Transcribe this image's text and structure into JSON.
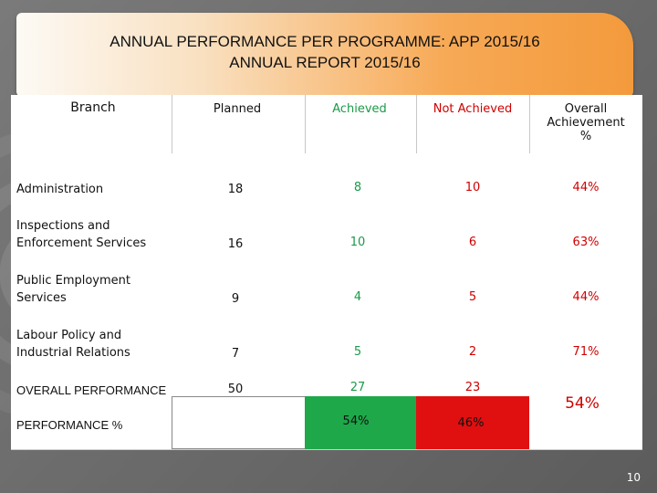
{
  "title": {
    "line1": "ANNUAL PERFORMANCE PER PROGRAMME: APP 2015/16",
    "line2": "ANNUAL REPORT 2015/16"
  },
  "table": {
    "headers": {
      "branch": "Branch",
      "planned": "Planned",
      "achieved": "Achieved",
      "not_achieved": "Not Achieved",
      "overall_line1": "Overall",
      "overall_line2": "Achievement",
      "overall_line3": "%"
    },
    "rows": [
      {
        "branch_line1": "Administration",
        "branch_line2": "",
        "planned": "18",
        "achieved": "8",
        "not_achieved": "10",
        "overall": "44%"
      },
      {
        "branch_line1": "Inspections and",
        "branch_line2": "Enforcement Services",
        "planned": "16",
        "achieved": "10",
        "not_achieved": "6",
        "overall": "63%"
      },
      {
        "branch_line1": "Public Employment",
        "branch_line2": "Services",
        "planned": "9",
        "achieved": "4",
        "not_achieved": "5",
        "overall": "44%"
      },
      {
        "branch_line1": "Labour Policy and",
        "branch_line2": "Industrial Relations",
        "planned": "7",
        "achieved": "5",
        "not_achieved": "2",
        "overall": "71%"
      }
    ],
    "overall_row": {
      "label": "OVERALL PERFORMANCE",
      "planned": "50",
      "achieved": "27",
      "not_achieved": "23"
    },
    "percent_row": {
      "label": "PERFORMANCE %",
      "achieved": "54%",
      "not_achieved": "46%",
      "overall": "54%"
    }
  },
  "colors": {
    "green": "#1ea84a",
    "red": "#e01010",
    "banner_orange": "#f39a3c"
  },
  "page_number": "10"
}
